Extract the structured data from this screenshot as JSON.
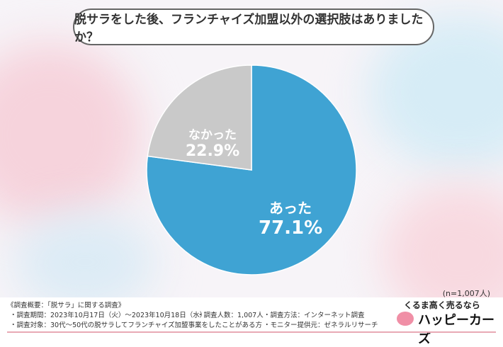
{
  "chart_data": {
    "type": "pie",
    "title": "脱サラをした後、フランチャイズ加盟以外の選択肢はありましたか？",
    "categories": [
      "あった",
      "なかった"
    ],
    "values": [
      77.1,
      22.9
    ],
    "value_labels": [
      "77.1%",
      "22.9%"
    ],
    "colors": [
      "#3fa3d3",
      "#c9c9c9"
    ],
    "sample_note": "(n=1,007人)"
  },
  "footer": {
    "heading": "《調査概要：「脱サラ」に関する調査》",
    "period": "・調査期間：2023年10月17日（火）～2023年10月18日（水）",
    "count": "・調査人数：1,007人",
    "method": "・調査方法：インターネット調査",
    "target": "・調査対象：30代～50代の脱サラしてフランチャイズ加盟事業をしたことがある方",
    "provider": "・モニター提供元：ゼネラルリサーチ"
  },
  "logo": {
    "tagline": "くるま高く売るなら",
    "name": "ハッピーカーズ"
  }
}
